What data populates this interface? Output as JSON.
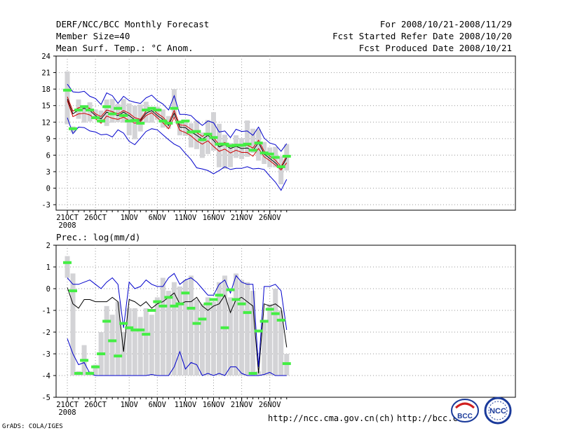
{
  "header": {
    "title": "DERF/NCC/BCC Monthly Forecast",
    "member_size": "Member Size=40",
    "variable1": "Mean Surf. Temp.: °C Anom.",
    "period": "For 2008/10/21-2008/11/29",
    "start_date": "Fcst Started Refer Date 2008/10/20",
    "produced_date": "Fcst Produced Date 2008/10/21"
  },
  "footer": {
    "credit": "GrADS: COLA/IGES",
    "url1": "http://ncc.cma.gov.cn(ch)",
    "url2": "http://bcc.c",
    "logo1_text": "BCC",
    "logo2_text": "NCC"
  },
  "colors": {
    "mean": "#000000",
    "spread": "#0000cc",
    "median": "#cc0000",
    "box": "#d3d3d6",
    "marker": "#44ee44"
  },
  "chart_data": [
    {
      "type": "line",
      "title": "Mean Surf. Temp.: °C Anom.",
      "x_ticks": [
        "21OCT",
        "26OCT",
        "1NOV",
        "6NOV",
        "11NOV",
        "16NOV",
        "21NOV",
        "26NOV"
      ],
      "x_tick_days": [
        0,
        5,
        11,
        16,
        21,
        26,
        31,
        36
      ],
      "x_sublabel": "2008",
      "ylim": [
        -4,
        24
      ],
      "yticks": [
        -3,
        0,
        3,
        6,
        9,
        12,
        15,
        18,
        21,
        24
      ],
      "days": 40,
      "series": [
        {
          "name": "mean",
          "values": [
            16.2,
            13.5,
            14.2,
            14.5,
            14.1,
            13.2,
            12.6,
            13.8,
            13.5,
            13.2,
            13.8,
            13.2,
            12.4,
            12.3,
            13.6,
            14.1,
            13.2,
            12.5,
            11.4,
            13.6,
            11.1,
            11.0,
            10.2,
            9.6,
            8.9,
            9.6,
            8.7,
            7.5,
            7.9,
            7.2,
            7.6,
            7.2,
            7.3,
            6.8,
            8.3,
            6.2,
            5.4,
            4.6,
            3.6,
            5.5
          ]
        },
        {
          "name": "upper",
          "values": [
            18.9,
            17.5,
            17.4,
            17.6,
            16.7,
            16.3,
            15.2,
            17.3,
            16.8,
            15.4,
            16.7,
            15.9,
            15.6,
            15.4,
            16.4,
            16.9,
            15.9,
            15.3,
            14.2,
            16.8,
            13.4,
            13.4,
            13.2,
            12.2,
            11.4,
            12.2,
            11.9,
            10.2,
            10.4,
            9.2,
            10.7,
            10.3,
            10.4,
            9.6,
            11.1,
            9.1,
            8.2,
            7.9,
            6.7,
            8.1
          ]
        },
        {
          "name": "lower",
          "values": [
            12.8,
            9.9,
            11.1,
            11.0,
            10.4,
            10.2,
            9.7,
            9.8,
            9.3,
            10.6,
            10.0,
            8.5,
            7.9,
            9.1,
            10.3,
            10.8,
            10.6,
            9.7,
            8.8,
            8.0,
            7.5,
            6.3,
            5.2,
            3.7,
            3.5,
            3.2,
            2.6,
            3.2,
            3.9,
            3.4,
            3.6,
            3.6,
            3.9,
            3.5,
            3.6,
            3.4,
            2.2,
            1.1,
            -0.4,
            1.6
          ]
        },
        {
          "name": "median",
          "values": [
            15.9,
            13.0,
            13.5,
            13.6,
            13.3,
            12.6,
            11.8,
            13.1,
            12.7,
            12.5,
            12.9,
            12.3,
            11.8,
            12.1,
            13.2,
            13.7,
            12.8,
            11.9,
            10.8,
            12.9,
            10.5,
            10.1,
            9.5,
            8.6,
            8.0,
            8.6,
            7.6,
            6.7,
            7.1,
            6.4,
            6.9,
            6.5,
            6.5,
            5.8,
            7.2,
            5.7,
            5.0,
            4.2,
            3.3,
            4.6
          ]
        },
        {
          "name": "median_upper",
          "values": [
            16.6,
            14.0,
            14.6,
            14.8,
            14.5,
            13.5,
            13.0,
            14.2,
            13.9,
            13.5,
            14.1,
            13.6,
            12.8,
            12.5,
            14.0,
            14.5,
            13.6,
            12.9,
            11.8,
            14.1,
            11.5,
            11.4,
            10.7,
            10.1,
            9.4,
            10.0,
            9.2,
            7.9,
            8.3,
            7.7,
            8.0,
            7.6,
            7.8,
            7.3,
            8.7,
            6.7,
            5.8,
            5.1,
            3.9,
            5.9
          ]
        }
      ],
      "boxes": [
        [
          11.6,
          21.2
        ],
        [
          10.1,
          11.2
        ],
        [
          12.6,
          16.1
        ],
        [
          11.9,
          15.1
        ],
        [
          12.1,
          15.6
        ],
        [
          12.5,
          14.3
        ],
        [
          11.9,
          14.1
        ],
        [
          11.3,
          16.1
        ],
        [
          11.9,
          16.2
        ],
        [
          12.0,
          15.3
        ],
        [
          11.9,
          16.2
        ],
        [
          9.6,
          15.4
        ],
        [
          8.9,
          15.0
        ],
        [
          10.3,
          15.2
        ],
        [
          11.9,
          15.7
        ],
        [
          11.9,
          14.8
        ],
        [
          12.4,
          14.8
        ],
        [
          11.0,
          14.3
        ],
        [
          10.8,
          13.1
        ],
        [
          12.8,
          18.0
        ],
        [
          9.6,
          12.1
        ],
        [
          9.5,
          12.0
        ],
        [
          7.4,
          11.8
        ],
        [
          7.1,
          12.3
        ],
        [
          5.5,
          10.1
        ],
        [
          6.2,
          12.4
        ],
        [
          6.8,
          13.8
        ],
        [
          3.8,
          11.7
        ],
        [
          3.5,
          9.7
        ],
        [
          3.8,
          8.2
        ],
        [
          5.5,
          9.6
        ],
        [
          5.3,
          9.1
        ],
        [
          5.7,
          12.3
        ],
        [
          6.4,
          10.8
        ],
        [
          5.0,
          10.7
        ],
        [
          4.4,
          8.4
        ],
        [
          3.8,
          7.4
        ],
        [
          3.8,
          7.5
        ],
        [
          0.7,
          5.8
        ],
        [
          3.2,
          8.0
        ]
      ],
      "markers": [
        17.8,
        10.8,
        14.2,
        14.8,
        14.2,
        12.8,
        12.2,
        14.8,
        13.5,
        14.5,
        13.2,
        12.2,
        12.3,
        11.8,
        14.2,
        14.5,
        14.2,
        12.2,
        11.8,
        14.5,
        12.0,
        12.2,
        10.2,
        10.3,
        8.8,
        9.8,
        9.2,
        8.0,
        8.0,
        7.7,
        7.8,
        7.8,
        8.0,
        6.9,
        8.2,
        6.4,
        6.2,
        5.6,
        3.9,
        5.8
      ]
    },
    {
      "type": "line",
      "title": "Prec.: log(mm/d)",
      "x_ticks": [
        "21OCT",
        "26OCT",
        "1NOV",
        "6NOV",
        "11NOV",
        "16NOV",
        "21NOV",
        "26NOV"
      ],
      "x_tick_days": [
        0,
        5,
        11,
        16,
        21,
        26,
        31,
        36
      ],
      "x_sublabel": "2008",
      "ylim": [
        -5,
        2
      ],
      "yticks": [
        -5,
        -4,
        -3,
        -2,
        -1,
        0,
        1,
        2
      ],
      "days": 40,
      "series": [
        {
          "name": "mean",
          "values": [
            0.05,
            -0.7,
            -0.9,
            -0.5,
            -0.5,
            -0.6,
            -0.6,
            -0.6,
            -0.4,
            -0.6,
            -2.9,
            -0.5,
            -0.6,
            -0.8,
            -0.6,
            -0.9,
            -0.7,
            -0.6,
            -0.4,
            -0.2,
            -0.7,
            -0.6,
            -0.6,
            -0.4,
            -0.8,
            -1.0,
            -0.8,
            -0.7,
            -0.3,
            -1.1,
            -0.5,
            -0.4,
            -0.6,
            -0.8,
            -3.9,
            -0.7,
            -0.8,
            -0.7,
            -0.9,
            -2.7
          ]
        },
        {
          "name": "upper",
          "values": [
            0.5,
            0.2,
            0.2,
            0.3,
            0.4,
            0.2,
            0.0,
            0.3,
            0.5,
            0.2,
            -1.8,
            0.3,
            0.0,
            0.1,
            0.4,
            0.2,
            0.1,
            0.1,
            0.5,
            0.7,
            0.2,
            0.4,
            0.5,
            0.3,
            0.0,
            -0.3,
            -0.3,
            0.2,
            0.4,
            -0.2,
            0.6,
            0.3,
            0.2,
            0.2,
            -3.6,
            0.1,
            0.1,
            0.2,
            -0.1,
            -1.9
          ]
        },
        {
          "name": "lower",
          "values": [
            -2.3,
            -3.0,
            -3.5,
            -3.4,
            -3.9,
            -4.0,
            -4.0,
            -4.0,
            -4.0,
            -4.0,
            -4.0,
            -4.0,
            -4.0,
            -4.0,
            -4.0,
            -3.95,
            -4.0,
            -4.0,
            -4.0,
            -3.6,
            -2.9,
            -3.7,
            -3.4,
            -3.5,
            -4.0,
            -3.9,
            -4.0,
            -3.9,
            -4.0,
            -3.6,
            -3.6,
            -3.9,
            -4.0,
            -4.0,
            -4.0,
            -3.95,
            -3.85,
            -4.0,
            -4.0,
            -4.0
          ]
        }
      ],
      "boxes": [
        [
          0.5,
          1.5
        ],
        [
          -4.0,
          0.7
        ],
        [
          -4.0,
          -3.8
        ],
        [
          -4.0,
          -2.6
        ],
        [
          -4.0,
          -3.8
        ],
        [
          -4.0,
          -3.5
        ],
        [
          -4.0,
          -2.0
        ],
        [
          -4.0,
          -0.8
        ],
        [
          -4.0,
          -1.2
        ],
        [
          -4.0,
          -0.6
        ],
        [
          -4.0,
          -2.0
        ],
        [
          -4.0,
          -0.9
        ],
        [
          -4.0,
          -0.9
        ],
        [
          -4.0,
          -1.3
        ],
        [
          -4.0,
          -0.9
        ],
        [
          -4.0,
          -1.2
        ],
        [
          -4.0,
          -0.4
        ],
        [
          -4.0,
          0.5
        ],
        [
          -4.0,
          -0.1
        ],
        [
          -4.0,
          0.3
        ],
        [
          -4.0,
          0.1
        ],
        [
          -4.0,
          0.4
        ],
        [
          -4.0,
          0.6
        ],
        [
          -4.0,
          -0.5
        ],
        [
          -4.0,
          -0.7
        ],
        [
          -4.0,
          -0.4
        ],
        [
          -4.0,
          -0.6
        ],
        [
          -4.0,
          0.3
        ],
        [
          -4.0,
          0.6
        ],
        [
          -4.0,
          -0.4
        ],
        [
          -4.0,
          0.7
        ],
        [
          -4.0,
          0.4
        ],
        [
          -4.0,
          0.3
        ],
        [
          -4.0,
          -0.1
        ],
        [
          -4.0,
          -3.8
        ],
        [
          -4.0,
          -1.5
        ],
        [
          -4.0,
          -0.7
        ],
        [
          -4.0,
          0.0
        ],
        [
          -4.0,
          -1.0
        ],
        [
          -4.0,
          -3.0
        ]
      ],
      "markers": [
        1.2,
        -0.1,
        -3.9,
        -3.3,
        -3.9,
        -3.6,
        -3.0,
        -1.5,
        -2.4,
        -3.1,
        -1.6,
        -1.8,
        -1.9,
        -1.9,
        -2.1,
        -1.0,
        -0.6,
        -0.8,
        -0.4,
        -0.8,
        -0.7,
        -0.2,
        -0.9,
        -1.6,
        -1.4,
        -0.7,
        -0.5,
        -0.3,
        -1.8,
        -0.05,
        -0.5,
        -0.7,
        -1.1,
        -3.9,
        -1.95,
        -1.5,
        -0.95,
        -1.15,
        -1.45,
        -3.45
      ]
    }
  ]
}
